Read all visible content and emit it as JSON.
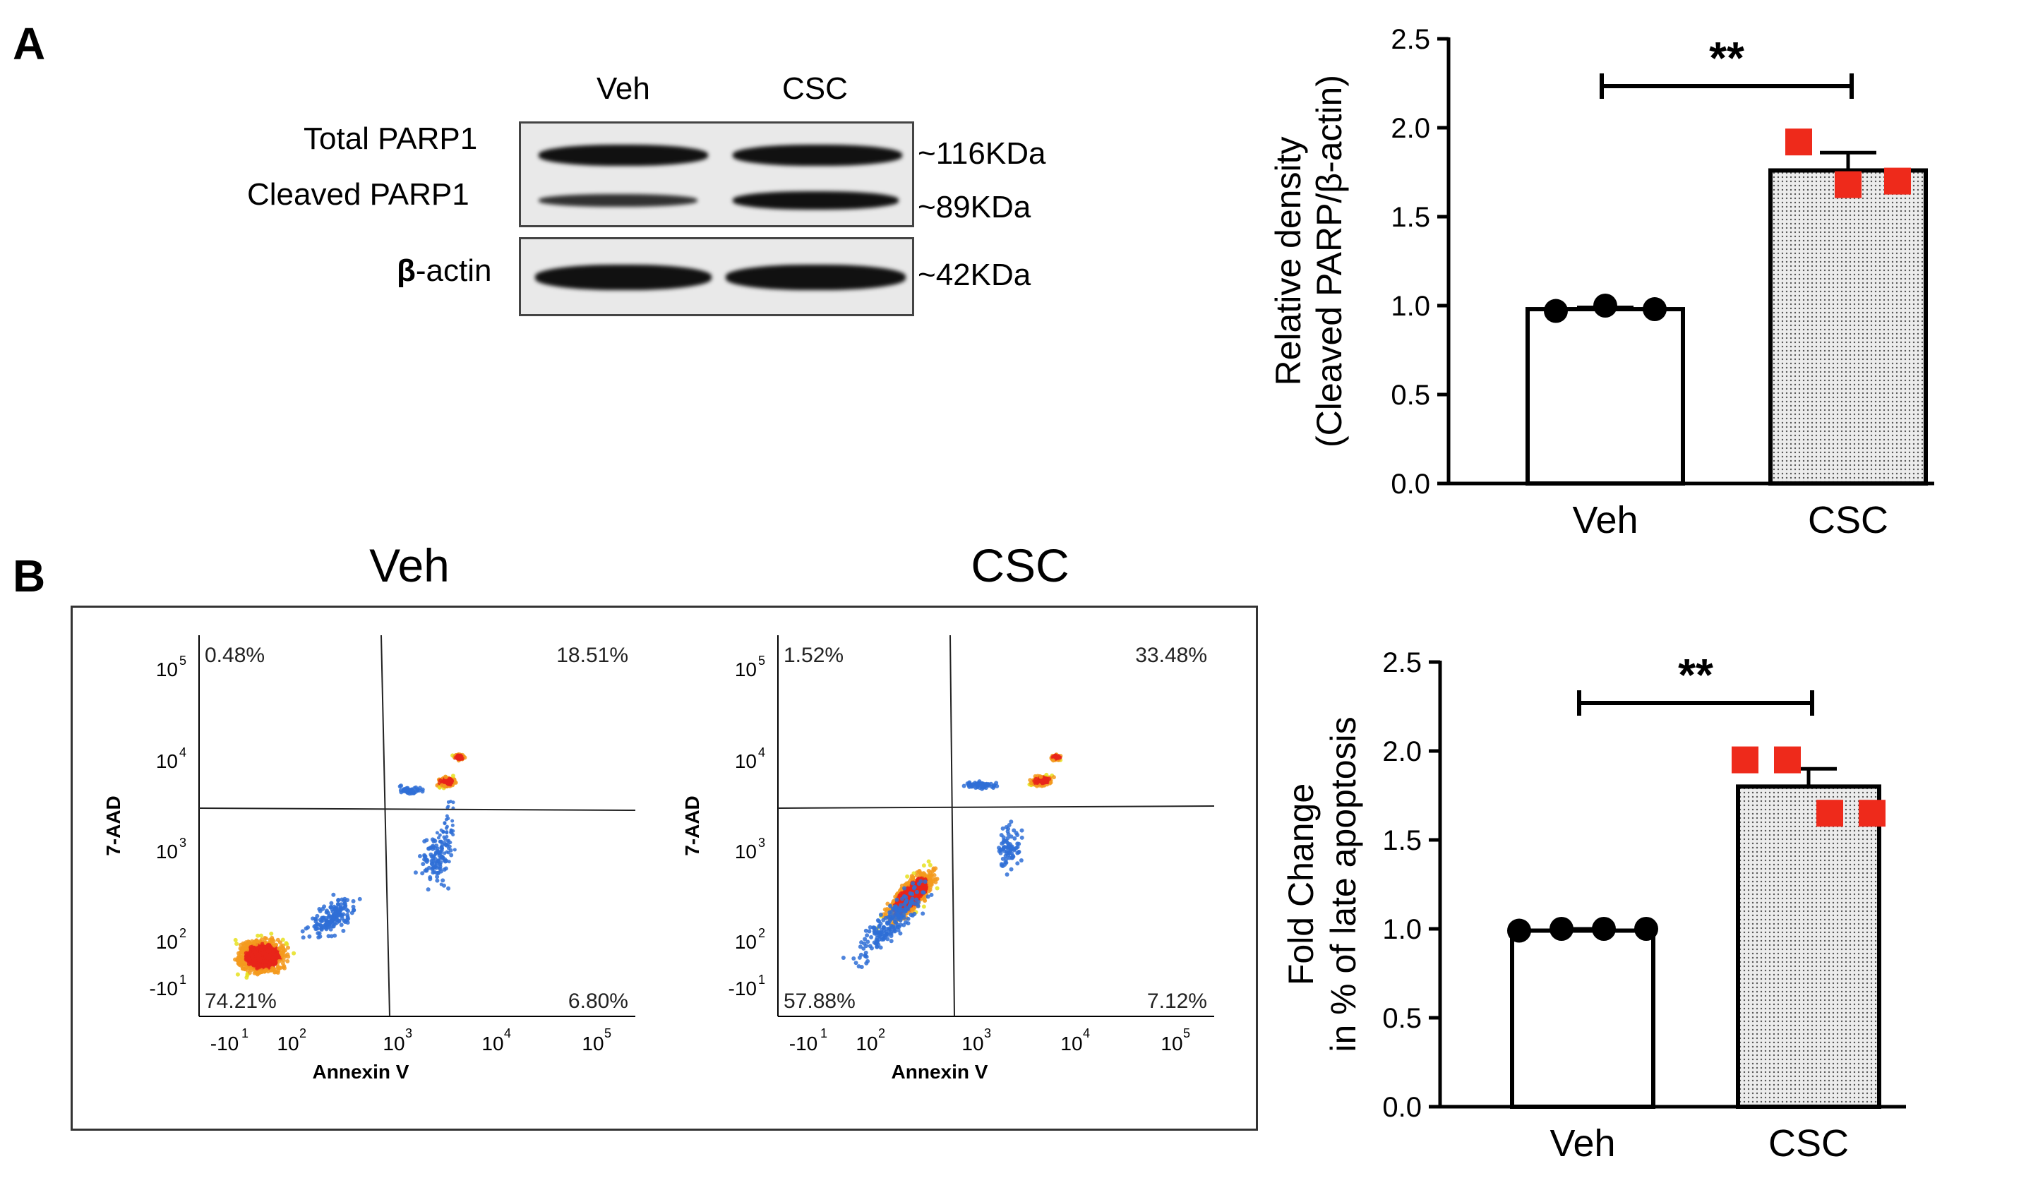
{
  "panel_a": {
    "letter": "A",
    "blot": {
      "lane_labels": [
        "Veh",
        "CSC"
      ],
      "row_labels": [
        "Total PARP1",
        "Cleaved PARP1",
        "-actin"
      ],
      "beta_symbol": "β",
      "sizes": [
        "~116KDa",
        "~89KDa",
        "~42KDa"
      ]
    }
  },
  "panel_b": {
    "letter": "B",
    "flow": [
      {
        "title": "Veh",
        "quadrants": {
          "ul": "0.48%",
          "ur": "18.51%",
          "ll": "74.21%",
          "lr": "6.80%"
        },
        "y_label": "7-AAD",
        "x_label": "Annexin V",
        "y_ticks": [
          "10",
          "10",
          "10",
          "10",
          "-10"
        ],
        "y_tick_exp": [
          "5",
          "4",
          "3",
          "2",
          "1"
        ],
        "x_ticks": [
          "-10",
          "10",
          "10",
          "10",
          "10"
        ],
        "x_tick_exp": [
          "1",
          "2",
          "3",
          "4",
          "5"
        ]
      },
      {
        "title": "CSC",
        "quadrants": {
          "ul": "1.52%",
          "ur": "33.48%",
          "ll": "57.88%",
          "lr": "7.12%"
        },
        "y_label": "7-AAD",
        "x_label": "Annexin V",
        "y_ticks": [
          "10",
          "10",
          "10",
          "10",
          "-10"
        ],
        "y_tick_exp": [
          "5",
          "4",
          "3",
          "2",
          "1"
        ],
        "x_ticks": [
          "-10",
          "10",
          "10",
          "10",
          "10"
        ],
        "x_tick_exp": [
          "1",
          "2",
          "3",
          "4",
          "5"
        ]
      }
    ]
  },
  "colors": {
    "bar_fill_veh": "#ffffff",
    "bar_fill_csc": "#d9d9d9",
    "veh_points": "#000000",
    "csc_points": "#ee2a1b"
  },
  "chart_data": [
    {
      "type": "bar",
      "categories": [
        "Veh",
        "CSC"
      ],
      "values": [
        0.98,
        1.76
      ],
      "errors": [
        0.01,
        0.1
      ],
      "points": [
        [
          0.97,
          1.0,
          0.98
        ],
        [
          1.92,
          1.68,
          1.7
        ]
      ],
      "ylabel_line1": "Relative density",
      "ylabel_line2": "(Cleaved PARP/β-actin)",
      "ylim": [
        0,
        2.5
      ],
      "yticks": [
        "0.0",
        "0.5",
        "1.0",
        "1.5",
        "2.0",
        "2.5"
      ],
      "significance": "**"
    },
    {
      "type": "bar",
      "categories": [
        "Veh",
        "CSC"
      ],
      "values": [
        0.99,
        1.8
      ],
      "errors": [
        0.01,
        0.1
      ],
      "points": [
        [
          0.99,
          1.0,
          1.0,
          1.0
        ],
        [
          1.95,
          1.95,
          1.65,
          1.65
        ]
      ],
      "ylabel_line1": "Fold Change",
      "ylabel_line2": "in % of late apoptosis",
      "ylim": [
        0,
        2.5
      ],
      "yticks": [
        "0.0",
        "0.5",
        "1.0",
        "1.5",
        "2.0",
        "2.5"
      ],
      "significance": "**"
    }
  ]
}
